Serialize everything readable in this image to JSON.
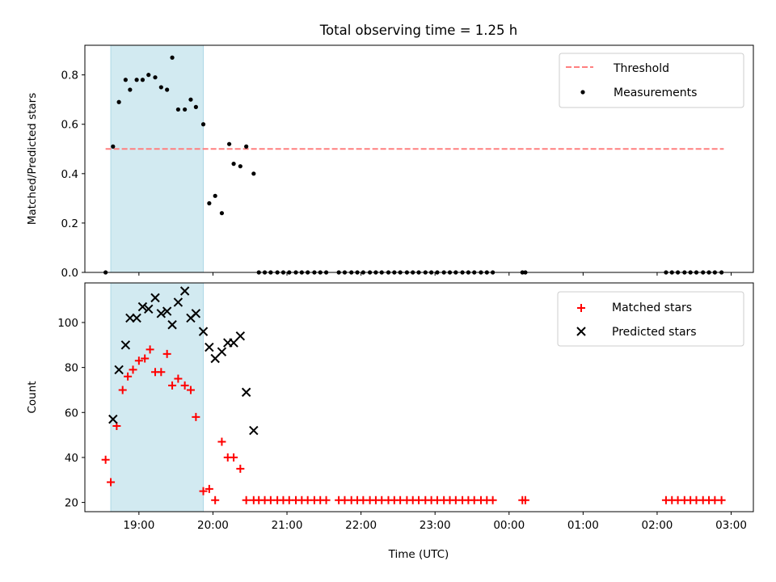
{
  "chart_data": {
    "type": "scatter",
    "title": "Total observing time = 1.25 h",
    "xlabel": "Time (UTC)",
    "x_tick_labels": [
      "19:00",
      "20:00",
      "21:00",
      "22:00",
      "23:00",
      "00:00",
      "01:00",
      "02:00",
      "03:00"
    ],
    "x_tick_hours": [
      19,
      20,
      21,
      22,
      23,
      24,
      25,
      26,
      27
    ],
    "xlim": [
      18.27,
      27.3
    ],
    "observing_window": [
      18.62,
      19.87
    ],
    "colors": {
      "window": "#add8e6",
      "threshold": "#ff7f7f",
      "matched": "#ff0000",
      "predicted": "#000000",
      "measurement": "#000000"
    },
    "top": {
      "ylabel": "Matched/Predicted stars",
      "ylim": [
        0,
        0.92
      ],
      "yticks": [
        "0.0",
        "0.2",
        "0.4",
        "0.6",
        "0.8"
      ],
      "threshold": 0.5,
      "threshold_range": [
        18.55,
        26.9
      ],
      "legend": {
        "location": "upper right",
        "entries": [
          "Threshold",
          "Measurements"
        ]
      },
      "measurements": {
        "x": [
          18.55,
          18.65,
          18.73,
          18.82,
          18.88,
          18.97,
          19.05,
          19.13,
          19.22,
          19.3,
          19.38,
          19.45,
          19.53,
          19.62,
          19.7,
          19.77,
          19.87,
          19.95,
          20.03,
          20.12,
          20.22,
          20.28,
          20.37,
          20.45,
          20.55,
          20.62,
          20.7,
          20.78,
          20.87,
          20.95,
          21.03,
          21.12,
          21.2,
          21.28,
          21.37,
          21.45,
          21.53,
          21.7,
          21.78,
          21.87,
          21.95,
          22.03,
          22.12,
          22.2,
          22.28,
          22.37,
          22.45,
          22.53,
          22.62,
          22.7,
          22.78,
          22.87,
          22.95,
          23.03,
          23.12,
          23.2,
          23.28,
          23.37,
          23.45,
          23.53,
          23.62,
          23.7,
          23.78,
          24.18,
          24.22,
          26.12,
          26.2,
          26.28,
          26.37,
          26.45,
          26.53,
          26.62,
          26.7,
          26.78,
          26.87
        ],
        "y": [
          0.0,
          0.51,
          0.69,
          0.78,
          0.74,
          0.78,
          0.78,
          0.8,
          0.79,
          0.75,
          0.74,
          0.87,
          0.66,
          0.66,
          0.7,
          0.67,
          0.6,
          0.28,
          0.31,
          0.24,
          0.52,
          0.44,
          0.43,
          0.51,
          0.4,
          0.0,
          0.0,
          0.0,
          0.0,
          0.0,
          0.0,
          0.0,
          0.0,
          0.0,
          0.0,
          0.0,
          0.0,
          0.0,
          0.0,
          0.0,
          0.0,
          0.0,
          0.0,
          0.0,
          0.0,
          0.0,
          0.0,
          0.0,
          0.0,
          0.0,
          0.0,
          0.0,
          0.0,
          0.0,
          0.0,
          0.0,
          0.0,
          0.0,
          0.0,
          0.0,
          0.0,
          0.0,
          0.0,
          0.0,
          0.0,
          0.0,
          0.0,
          0.0,
          0.0,
          0.0,
          0.0,
          0.0,
          0.0,
          0.0,
          0.0
        ]
      }
    },
    "bottom": {
      "ylabel": "Count",
      "ylim": [
        15.9,
        117.6
      ],
      "yticks": [
        "20",
        "40",
        "60",
        "80",
        "100"
      ],
      "legend": {
        "location": "upper right",
        "entries": [
          "Matched stars",
          "Predicted stars"
        ]
      },
      "matched": {
        "x": [
          18.55,
          18.62,
          18.7,
          18.78,
          18.85,
          18.92,
          19.0,
          19.08,
          19.15,
          19.22,
          19.3,
          19.38,
          19.45,
          19.53,
          19.62,
          19.7,
          19.77,
          19.87,
          19.95,
          20.03,
          20.12,
          20.2,
          20.28,
          20.37,
          20.45,
          20.55,
          20.62,
          20.7,
          20.78,
          20.87,
          20.95,
          21.03,
          21.12,
          21.2,
          21.28,
          21.37,
          21.45,
          21.53,
          21.7,
          21.78,
          21.87,
          21.95,
          22.03,
          22.12,
          22.2,
          22.28,
          22.37,
          22.45,
          22.53,
          22.62,
          22.7,
          22.78,
          22.87,
          22.95,
          23.03,
          23.12,
          23.2,
          23.28,
          23.37,
          23.45,
          23.53,
          23.62,
          23.7,
          23.78,
          24.18,
          24.22,
          26.12,
          26.2,
          26.28,
          26.37,
          26.45,
          26.53,
          26.62,
          26.7,
          26.78,
          26.87
        ],
        "y": [
          39,
          29,
          54,
          70,
          76,
          79,
          83,
          84,
          88,
          78,
          78,
          86,
          72,
          75,
          72,
          70,
          58,
          25,
          26,
          21,
          47,
          40,
          40,
          35,
          21,
          21,
          21,
          21,
          21,
          21,
          21,
          21,
          21,
          21,
          21,
          21,
          21,
          21,
          21,
          21,
          21,
          21,
          21,
          21,
          21,
          21,
          21,
          21,
          21,
          21,
          21,
          21,
          21,
          21,
          21,
          21,
          21,
          21,
          21,
          21,
          21,
          21,
          21,
          21,
          21,
          21,
          21,
          21,
          21,
          21,
          21,
          21,
          21,
          21,
          21,
          21
        ]
      },
      "predicted": {
        "x": [
          18.65,
          18.73,
          18.82,
          18.88,
          18.97,
          19.05,
          19.13,
          19.22,
          19.3,
          19.38,
          19.45,
          19.53,
          19.62,
          19.7,
          19.77,
          19.87,
          19.95,
          20.03,
          20.12,
          20.2,
          20.28,
          20.37,
          20.45,
          20.55
        ],
        "y": [
          57,
          79,
          90,
          102,
          102,
          107,
          106,
          111,
          104,
          105,
          99,
          109,
          114,
          102,
          104,
          96,
          89,
          84,
          87,
          91,
          91,
          94,
          69,
          52
        ]
      }
    }
  }
}
